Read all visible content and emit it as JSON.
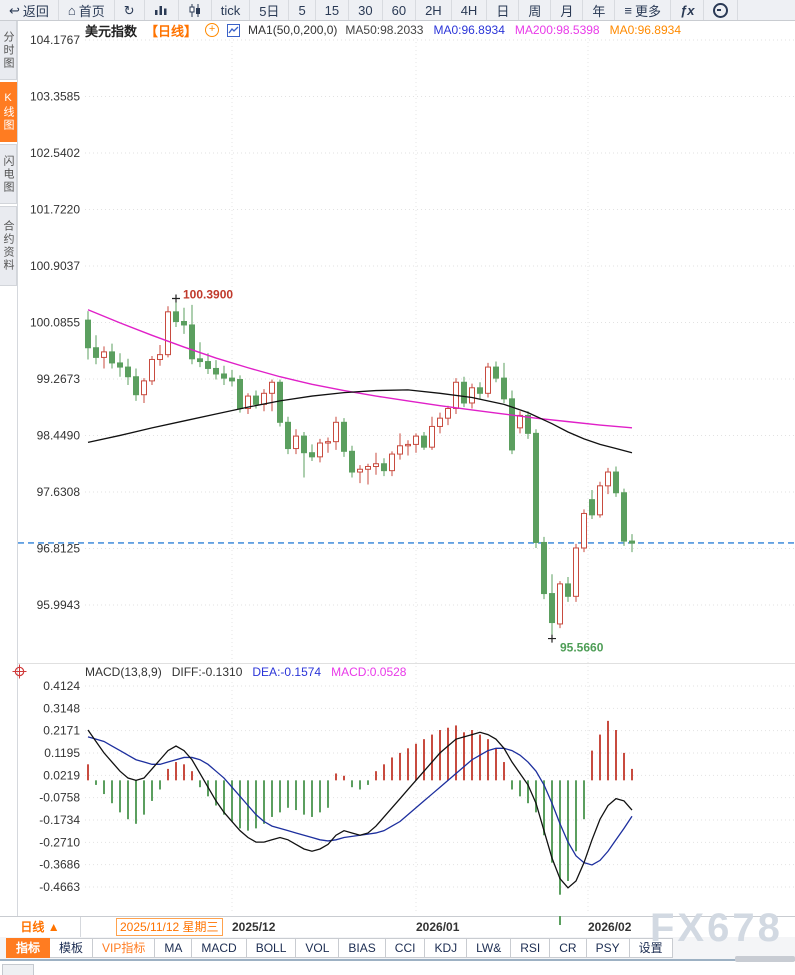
{
  "top_toolbar": {
    "items": [
      {
        "name": "back-button",
        "icon": "back-arrow-icon",
        "label": "返回"
      },
      {
        "name": "home-button",
        "icon": "home-icon",
        "label": "首页"
      },
      {
        "name": "refresh-button",
        "icon": "refresh-icon",
        "label": ""
      },
      {
        "name": "line-chart-view-button",
        "icon": "bar-chart-icon",
        "label": ""
      },
      {
        "name": "candlestick-view-button",
        "icon": "candlestick-icon",
        "label": ""
      },
      {
        "name": "interval-tick-button",
        "icon": "",
        "label": "tick"
      },
      {
        "name": "interval-5day-button",
        "icon": "",
        "label": "5日"
      },
      {
        "name": "interval-5min-button",
        "icon": "",
        "label": "5"
      },
      {
        "name": "interval-15min-button",
        "icon": "",
        "label": "15"
      },
      {
        "name": "interval-30min-button",
        "icon": "",
        "label": "30"
      },
      {
        "name": "interval-60min-button",
        "icon": "",
        "label": "60"
      },
      {
        "name": "interval-2h-button",
        "icon": "",
        "label": "2H"
      },
      {
        "name": "interval-4h-button",
        "icon": "",
        "label": "4H"
      },
      {
        "name": "interval-day-button",
        "icon": "",
        "label": "日"
      },
      {
        "name": "interval-week-button",
        "icon": "",
        "label": "周"
      },
      {
        "name": "interval-month-button",
        "icon": "",
        "label": "月"
      },
      {
        "name": "interval-year-button",
        "icon": "",
        "label": "年"
      },
      {
        "name": "more-menu-button",
        "icon": "menu-icon",
        "label": "更多"
      },
      {
        "name": "fx-indicator-button",
        "icon": "fx-icon",
        "label": ""
      },
      {
        "name": "clock-button",
        "icon": "clock-icon",
        "label": ""
      }
    ]
  },
  "sidebar": {
    "items": [
      {
        "name": "sidebar-tab-time-chart",
        "label": "分时图",
        "active": false
      },
      {
        "name": "sidebar-tab-kline-chart",
        "label": "K线图",
        "active": true
      },
      {
        "name": "sidebar-tab-flash-chart",
        "label": "闪电图",
        "active": false
      },
      {
        "name": "sidebar-tab-contract-info",
        "label": "合约资料",
        "active": false
      }
    ]
  },
  "chart_header": {
    "symbol": "美元指数",
    "period_tag": "【日线】",
    "ma_settings": "MA1(50,0,200,0)",
    "ma_values": [
      {
        "label": "MA50:98.2033",
        "color": "#444444"
      },
      {
        "label": "MA0:96.8934",
        "color": "#2b35d8"
      },
      {
        "label": "MA200:98.5398",
        "color": "#e93ae9"
      },
      {
        "label": "MA0:96.8934",
        "color": "#ff8a00"
      }
    ]
  },
  "macd_header": {
    "title": "MACD(13,8,9)",
    "values": [
      {
        "label": "DIFF:-0.1310",
        "color": "#333333"
      },
      {
        "label": "DEA:-0.1574",
        "color": "#2b35d8"
      },
      {
        "label": "MACD:0.0528",
        "color": "#e93ae9"
      }
    ]
  },
  "date_axis": {
    "selected": "2025/11/12 星期三",
    "months": [
      {
        "label": "2025/12",
        "index": 18
      },
      {
        "label": "2026/01",
        "index": 41
      },
      {
        "label": "2026/02",
        "index": 62.5
      }
    ]
  },
  "period_selector": "日线 ▲",
  "bottom_tabs": [
    {
      "name": "tab-indicators",
      "label": "指标",
      "active": true,
      "vip": false
    },
    {
      "name": "tab-templates",
      "label": "模板",
      "active": false,
      "vip": false
    },
    {
      "name": "tab-vip-indicators",
      "label": "VIP指标",
      "active": false,
      "vip": true
    },
    {
      "name": "tab-ma",
      "label": "MA",
      "active": false,
      "vip": false
    },
    {
      "name": "tab-macd",
      "label": "MACD",
      "active": false,
      "vip": false
    },
    {
      "name": "tab-boll",
      "label": "BOLL",
      "active": false,
      "vip": false
    },
    {
      "name": "tab-vol",
      "label": "VOL",
      "active": false,
      "vip": false
    },
    {
      "name": "tab-bias",
      "label": "BIAS",
      "active": false,
      "vip": false
    },
    {
      "name": "tab-cci",
      "label": "CCI",
      "active": false,
      "vip": false
    },
    {
      "name": "tab-kdj",
      "label": "KDJ",
      "active": false,
      "vip": false
    },
    {
      "name": "tab-lw",
      "label": "LW&",
      "active": false,
      "vip": false
    },
    {
      "name": "tab-rsi",
      "label": "RSI",
      "active": false,
      "vip": false
    },
    {
      "name": "tab-cr",
      "label": "CR",
      "active": false,
      "vip": false
    },
    {
      "name": "tab-psy",
      "label": "PSY",
      "active": false,
      "vip": false
    },
    {
      "name": "tab-settings",
      "label": "设置",
      "active": false,
      "vip": false
    }
  ],
  "watermark": "FX678",
  "colors": {
    "accent_orange": "#ff7c21",
    "up": "#c84b3f",
    "down": "#5b9f5f",
    "ma50": "#111111",
    "ma200": "#e020c8",
    "diff": "#111111",
    "dea": "#1d2f9e",
    "last_price_line": "#2f80d8",
    "grid": "#e2e2e2",
    "axis_text": "#333333",
    "high_annotation": "#c0392b",
    "low_annotation": "#4f9e57"
  },
  "chart_data": {
    "type": "candlestick",
    "title": "美元指数 日线",
    "start_date": "2025/11/12",
    "price_axis_ticks": [
      104.1767,
      103.3585,
      102.5402,
      101.722,
      100.9037,
      100.0855,
      99.2673,
      98.449,
      97.6308,
      96.8125,
      95.9943
    ],
    "high_annotation": {
      "label": "100.3900",
      "value": 100.39,
      "index": 11
    },
    "low_annotation": {
      "label": "95.5660",
      "value": 95.566,
      "index": 58
    },
    "last_price": 96.8934,
    "month_gridline_indices": [
      18,
      41,
      62.5
    ],
    "candles_ohlc": [
      [
        100.12,
        100.25,
        99.55,
        99.72
      ],
      [
        99.72,
        99.9,
        99.48,
        99.58
      ],
      [
        99.58,
        99.74,
        99.42,
        99.66
      ],
      [
        99.66,
        99.78,
        99.42,
        99.5
      ],
      [
        99.5,
        99.64,
        99.3,
        99.44
      ],
      [
        99.44,
        99.56,
        99.18,
        99.3
      ],
      [
        99.3,
        99.42,
        98.95,
        99.04
      ],
      [
        99.04,
        99.28,
        98.92,
        99.24
      ],
      [
        99.24,
        99.6,
        99.18,
        99.55
      ],
      [
        99.55,
        99.76,
        99.46,
        99.62
      ],
      [
        99.62,
        100.32,
        99.58,
        100.24
      ],
      [
        100.24,
        100.39,
        100.02,
        100.1
      ],
      [
        100.1,
        100.3,
        99.92,
        100.05
      ],
      [
        100.05,
        100.34,
        99.48,
        99.56
      ],
      [
        99.56,
        99.8,
        99.44,
        99.52
      ],
      [
        99.52,
        99.64,
        99.34,
        99.42
      ],
      [
        99.42,
        99.54,
        99.26,
        99.34
      ],
      [
        99.34,
        99.46,
        99.18,
        99.28
      ],
      [
        99.28,
        99.4,
        99.16,
        99.24
      ],
      [
        99.26,
        99.32,
        98.78,
        98.84
      ],
      [
        98.84,
        99.06,
        98.76,
        99.02
      ],
      [
        99.02,
        99.1,
        98.84,
        98.9
      ],
      [
        98.9,
        99.12,
        98.8,
        99.06
      ],
      [
        99.06,
        99.26,
        98.8,
        99.22
      ],
      [
        99.22,
        99.26,
        98.58,
        98.64
      ],
      [
        98.64,
        98.72,
        98.18,
        98.26
      ],
      [
        98.26,
        98.54,
        98.18,
        98.44
      ],
      [
        98.44,
        98.5,
        97.84,
        98.2
      ],
      [
        98.2,
        98.32,
        98.08,
        98.14
      ],
      [
        98.14,
        98.4,
        98.06,
        98.34
      ],
      [
        98.34,
        98.42,
        98.2,
        98.36
      ],
      [
        98.36,
        98.72,
        98.24,
        98.64
      ],
      [
        98.64,
        98.7,
        98.14,
        98.22
      ],
      [
        98.22,
        98.3,
        97.84,
        97.92
      ],
      [
        97.92,
        98.02,
        97.76,
        97.96
      ],
      [
        97.96,
        98.04,
        97.74,
        98.0
      ],
      [
        98.0,
        98.2,
        97.88,
        98.04
      ],
      [
        98.04,
        98.12,
        97.86,
        97.94
      ],
      [
        97.94,
        98.22,
        97.86,
        98.18
      ],
      [
        98.18,
        98.48,
        98.1,
        98.3
      ],
      [
        98.3,
        98.38,
        98.16,
        98.32
      ],
      [
        98.32,
        98.48,
        98.2,
        98.44
      ],
      [
        98.44,
        98.5,
        98.24,
        98.28
      ],
      [
        98.28,
        98.72,
        98.24,
        98.58
      ],
      [
        98.58,
        98.78,
        98.48,
        98.7
      ],
      [
        98.7,
        98.88,
        98.6,
        98.84
      ],
      [
        98.84,
        99.28,
        98.76,
        99.22
      ],
      [
        99.22,
        99.3,
        98.86,
        98.92
      ],
      [
        98.92,
        99.2,
        98.84,
        99.14
      ],
      [
        99.14,
        99.22,
        98.98,
        99.06
      ],
      [
        99.06,
        99.5,
        99.0,
        99.44
      ],
      [
        99.44,
        99.52,
        99.22,
        99.28
      ],
      [
        99.28,
        99.5,
        98.92,
        98.98
      ],
      [
        98.98,
        99.1,
        98.18,
        98.24
      ],
      [
        98.56,
        98.8,
        98.48,
        98.74
      ],
      [
        98.74,
        98.8,
        98.4,
        98.48
      ],
      [
        98.48,
        98.54,
        96.82,
        96.9
      ],
      [
        96.9,
        96.98,
        96.08,
        96.16
      ],
      [
        96.16,
        96.44,
        95.566,
        95.74
      ],
      [
        95.72,
        96.34,
        95.66,
        96.3
      ],
      [
        96.3,
        96.4,
        96.04,
        96.12
      ],
      [
        96.12,
        96.88,
        96.04,
        96.82
      ],
      [
        96.82,
        97.38,
        96.76,
        97.32
      ],
      [
        97.52,
        97.66,
        97.24,
        97.3
      ],
      [
        97.3,
        97.78,
        97.26,
        97.72
      ],
      [
        97.72,
        97.98,
        97.6,
        97.92
      ],
      [
        97.92,
        98.0,
        97.56,
        97.62
      ],
      [
        97.62,
        97.68,
        96.85,
        96.92
      ],
      [
        96.92,
        97.02,
        96.76,
        96.89
      ]
    ],
    "ma50_points": [
      [
        0,
        98.35
      ],
      [
        4,
        98.45
      ],
      [
        8,
        98.56
      ],
      [
        12,
        98.66
      ],
      [
        16,
        98.76
      ],
      [
        20,
        98.86
      ],
      [
        24,
        98.95
      ],
      [
        28,
        99.02
      ],
      [
        32,
        99.07
      ],
      [
        36,
        99.1
      ],
      [
        40,
        99.11
      ],
      [
        44,
        99.06
      ],
      [
        48,
        99.0
      ],
      [
        52,
        98.9
      ],
      [
        55,
        98.78
      ],
      [
        58,
        98.62
      ],
      [
        60,
        98.5
      ],
      [
        62,
        98.4
      ],
      [
        64,
        98.32
      ],
      [
        66,
        98.26
      ],
      [
        68,
        98.2
      ]
    ],
    "ma200_points": [
      [
        0,
        100.27
      ],
      [
        4,
        100.08
      ],
      [
        8,
        99.9
      ],
      [
        12,
        99.73
      ],
      [
        16,
        99.57
      ],
      [
        20,
        99.43
      ],
      [
        24,
        99.3
      ],
      [
        28,
        99.19
      ],
      [
        32,
        99.1
      ],
      [
        36,
        99.02
      ],
      [
        40,
        98.95
      ],
      [
        44,
        98.88
      ],
      [
        48,
        98.82
      ],
      [
        52,
        98.76
      ],
      [
        56,
        98.7
      ],
      [
        60,
        98.65
      ],
      [
        64,
        98.6
      ],
      [
        68,
        98.56
      ]
    ],
    "macd": {
      "type": "bar+line",
      "params": "13,8,9",
      "axis_ticks": [
        0.4124,
        0.3148,
        0.2171,
        0.1195,
        0.0219,
        -0.0758,
        -0.1734,
        -0.271,
        -0.3686,
        -0.4663
      ],
      "hist": [
        0.07,
        -0.02,
        -0.06,
        -0.1,
        -0.14,
        -0.17,
        -0.19,
        -0.15,
        -0.09,
        -0.04,
        0.05,
        0.08,
        0.07,
        0.04,
        -0.03,
        -0.07,
        -0.11,
        -0.15,
        -0.18,
        -0.21,
        -0.22,
        -0.21,
        -0.19,
        -0.16,
        -0.14,
        -0.12,
        -0.13,
        -0.15,
        -0.16,
        -0.14,
        -0.12,
        0.03,
        0.02,
        -0.03,
        -0.04,
        -0.02,
        0.04,
        0.07,
        0.1,
        0.12,
        0.14,
        0.16,
        0.18,
        0.2,
        0.22,
        0.23,
        0.24,
        0.21,
        0.22,
        0.2,
        0.18,
        0.14,
        0.08,
        -0.04,
        -0.07,
        -0.1,
        -0.14,
        -0.24,
        -0.36,
        -0.5,
        -0.44,
        -0.31,
        -0.17,
        0.13,
        0.2,
        0.26,
        0.22,
        0.12,
        0.05
      ],
      "diff": [
        0.22,
        0.17,
        0.12,
        0.08,
        0.04,
        0.01,
        0.0,
        0.01,
        0.05,
        0.09,
        0.13,
        0.15,
        0.13,
        0.09,
        0.03,
        -0.03,
        -0.09,
        -0.14,
        -0.18,
        -0.22,
        -0.25,
        -0.27,
        -0.27,
        -0.26,
        -0.25,
        -0.26,
        -0.28,
        -0.3,
        -0.31,
        -0.3,
        -0.28,
        -0.24,
        -0.22,
        -0.23,
        -0.24,
        -0.23,
        -0.2,
        -0.16,
        -0.12,
        -0.08,
        -0.04,
        0.0,
        0.04,
        0.08,
        0.12,
        0.15,
        0.18,
        0.19,
        0.2,
        0.21,
        0.2,
        0.18,
        0.14,
        0.08,
        0.03,
        -0.02,
        -0.1,
        -0.22,
        -0.34,
        -0.43,
        -0.47,
        -0.44,
        -0.36,
        -0.26,
        -0.17,
        -0.11,
        -0.08,
        -0.09,
        -0.13
      ],
      "dea": [
        0.19,
        0.18,
        0.17,
        0.15,
        0.13,
        0.11,
        0.09,
        0.08,
        0.07,
        0.07,
        0.08,
        0.09,
        0.1,
        0.1,
        0.09,
        0.07,
        0.04,
        0.01,
        -0.03,
        -0.07,
        -0.11,
        -0.15,
        -0.18,
        -0.2,
        -0.21,
        -0.22,
        -0.23,
        -0.24,
        -0.25,
        -0.26,
        -0.265,
        -0.26,
        -0.25,
        -0.245,
        -0.24,
        -0.235,
        -0.23,
        -0.22,
        -0.2,
        -0.18,
        -0.15,
        -0.12,
        -0.09,
        -0.06,
        -0.03,
        0.0,
        0.03,
        0.06,
        0.09,
        0.11,
        0.13,
        0.14,
        0.14,
        0.13,
        0.11,
        0.08,
        0.04,
        -0.02,
        -0.1,
        -0.19,
        -0.27,
        -0.33,
        -0.36,
        -0.37,
        -0.35,
        -0.31,
        -0.26,
        -0.21,
        -0.157
      ]
    }
  }
}
